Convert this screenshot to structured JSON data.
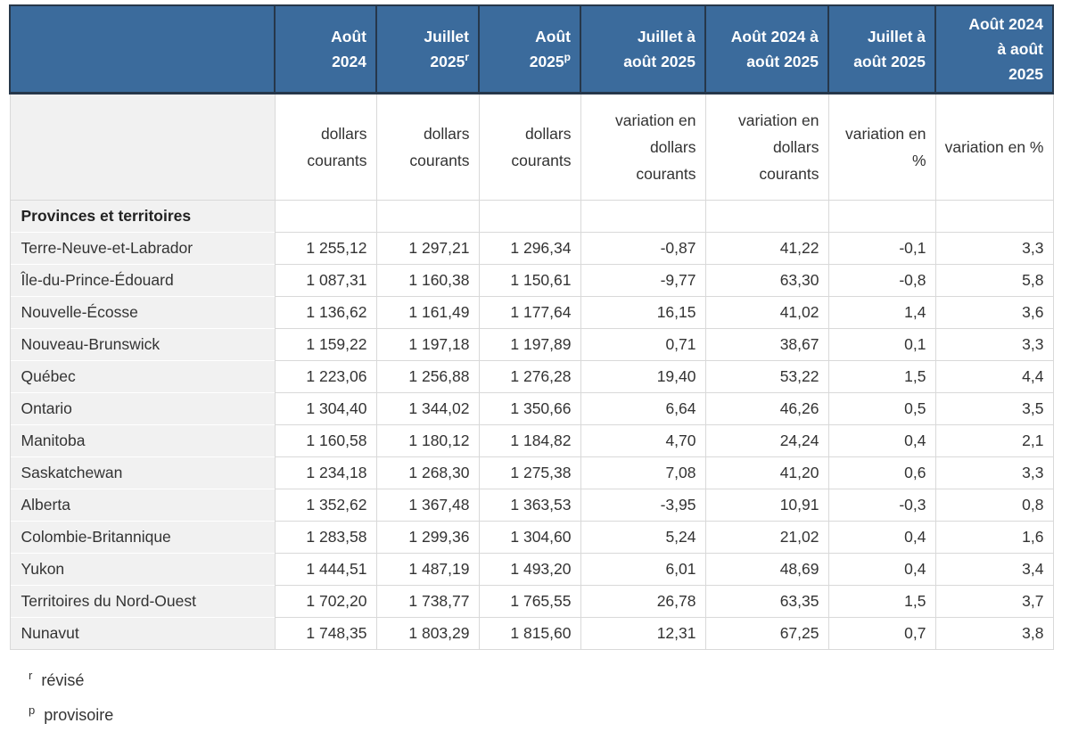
{
  "colors": {
    "header_bg": "#3b6b9c",
    "header_border": "#26374a",
    "grid": "#d9d9d9",
    "label_bg": "#f1f1f1",
    "text": "#333333"
  },
  "table": {
    "header": {
      "row_label": "",
      "columns": [
        {
          "lines": [
            "Août",
            "2024"
          ],
          "sup": ""
        },
        {
          "lines": [
            "Juillet",
            "2025"
          ],
          "sup": "r"
        },
        {
          "lines": [
            "Août",
            "2025"
          ],
          "sup": "p"
        },
        {
          "lines": [
            "Juillet à",
            "août 2025"
          ],
          "sup": ""
        },
        {
          "lines": [
            "Août 2024 à",
            "août 2025"
          ],
          "sup": ""
        },
        {
          "lines": [
            "Juillet à",
            "août 2025"
          ],
          "sup": ""
        },
        {
          "lines": [
            "Août 2024",
            "à août",
            "2025"
          ],
          "sup": ""
        }
      ]
    },
    "units": [
      "dollars courants",
      "dollars courants",
      "dollars courants",
      "variation en dollars courants",
      "variation en dollars courants",
      "variation en %",
      "variation en %"
    ],
    "section_label": "Provinces et territoires",
    "rows": [
      {
        "label": "Terre-Neuve-et-Labrador",
        "values": [
          "1 255,12",
          "1 297,21",
          "1 296,34",
          "-0,87",
          "41,22",
          "-0,1",
          "3,3"
        ]
      },
      {
        "label": "Île-du-Prince-Édouard",
        "values": [
          "1 087,31",
          "1 160,38",
          "1 150,61",
          "-9,77",
          "63,30",
          "-0,8",
          "5,8"
        ]
      },
      {
        "label": "Nouvelle-Écosse",
        "values": [
          "1 136,62",
          "1 161,49",
          "1 177,64",
          "16,15",
          "41,02",
          "1,4",
          "3,6"
        ]
      },
      {
        "label": "Nouveau-Brunswick",
        "values": [
          "1 159,22",
          "1 197,18",
          "1 197,89",
          "0,71",
          "38,67",
          "0,1",
          "3,3"
        ]
      },
      {
        "label": "Québec",
        "values": [
          "1 223,06",
          "1 256,88",
          "1 276,28",
          "19,40",
          "53,22",
          "1,5",
          "4,4"
        ]
      },
      {
        "label": "Ontario",
        "values": [
          "1 304,40",
          "1 344,02",
          "1 350,66",
          "6,64",
          "46,26",
          "0,5",
          "3,5"
        ]
      },
      {
        "label": "Manitoba",
        "values": [
          "1 160,58",
          "1 180,12",
          "1 184,82",
          "4,70",
          "24,24",
          "0,4",
          "2,1"
        ]
      },
      {
        "label": "Saskatchewan",
        "values": [
          "1 234,18",
          "1 268,30",
          "1 275,38",
          "7,08",
          "41,20",
          "0,6",
          "3,3"
        ]
      },
      {
        "label": "Alberta",
        "values": [
          "1 352,62",
          "1 367,48",
          "1 363,53",
          "-3,95",
          "10,91",
          "-0,3",
          "0,8"
        ]
      },
      {
        "label": "Colombie-Britannique",
        "values": [
          "1 283,58",
          "1 299,36",
          "1 304,60",
          "5,24",
          "21,02",
          "0,4",
          "1,6"
        ]
      },
      {
        "label": "Yukon",
        "values": [
          "1 444,51",
          "1 487,19",
          "1 493,20",
          "6,01",
          "48,69",
          "0,4",
          "3,4"
        ]
      },
      {
        "label": "Territoires du Nord-Ouest",
        "values": [
          "1 702,20",
          "1 738,77",
          "1 765,55",
          "26,78",
          "63,35",
          "1,5",
          "3,7"
        ]
      },
      {
        "label": "Nunavut",
        "values": [
          "1 748,35",
          "1 803,29",
          "1 815,60",
          "12,31",
          "67,25",
          "0,7",
          "3,8"
        ]
      }
    ]
  },
  "footnotes": [
    {
      "sup": "r",
      "label": "révisé"
    },
    {
      "sup": "p",
      "label": "provisoire"
    }
  ]
}
